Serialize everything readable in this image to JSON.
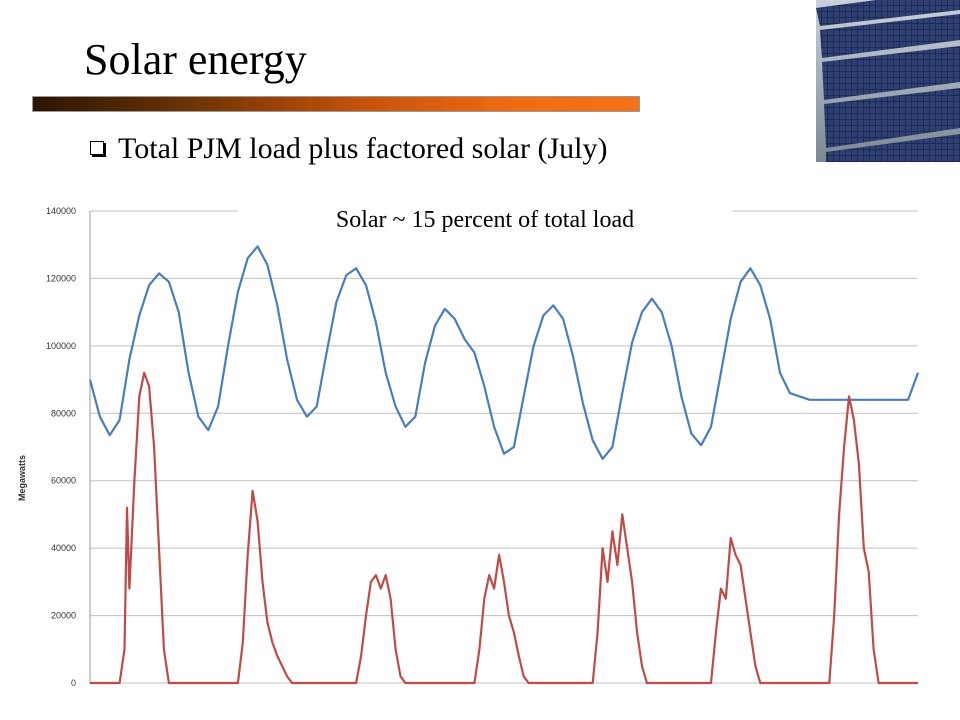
{
  "slide": {
    "title": "Solar energy",
    "bullet": "Total PJM load plus factored solar (July)",
    "annotation": "Solar ~ 15 percent of total load"
  },
  "photo_icon": "solar-panel-photo",
  "colors": {
    "load": "#4a7ebb",
    "solar": "#be4b48",
    "grid": "#c0c0c0",
    "title_bar_start": "#2a1500",
    "title_bar_end": "#f47217"
  },
  "chart_data": {
    "type": "line",
    "title": "",
    "xlabel": "",
    "ylabel": "Megawatts",
    "ylim": [
      0,
      140000
    ],
    "y_ticks": [
      "0",
      "20000",
      "40000",
      "60000",
      "80000",
      "100000",
      "120000",
      "140000"
    ],
    "grid": true,
    "legend": "none",
    "days": 7,
    "series": [
      {
        "key": "load",
        "color": "#4a7ebb",
        "x_hours": [
          0,
          2,
          4,
          6,
          8,
          10,
          12,
          14,
          16,
          18,
          20,
          22,
          24,
          26,
          28,
          30,
          32,
          34,
          36,
          38,
          40,
          42,
          44,
          46,
          48,
          50,
          52,
          54,
          56,
          58,
          60,
          62,
          64,
          66,
          68,
          70,
          72,
          74,
          76,
          78,
          80,
          82,
          84,
          86,
          88,
          90,
          92,
          94,
          96,
          98,
          100,
          102,
          104,
          106,
          108,
          110,
          112,
          114,
          116,
          118,
          120,
          122,
          124,
          126,
          128,
          130,
          132,
          134,
          136,
          138,
          140,
          142,
          144,
          146,
          148,
          150,
          152,
          154,
          156,
          158,
          160,
          162,
          164,
          166,
          168
        ],
        "values": [
          90000,
          79000,
          73500,
          78000,
          96000,
          109000,
          118000,
          121500,
          119000,
          110000,
          92000,
          79000,
          75000,
          82000,
          100000,
          116000,
          126000,
          129500,
          124000,
          112000,
          96000,
          84000,
          79000,
          82000,
          98000,
          113000,
          121000,
          123000,
          118000,
          107000,
          92000,
          82000,
          76000,
          79000,
          95000,
          106000,
          111000,
          108000,
          102000,
          98000,
          88000,
          76000,
          68000,
          70000,
          85000,
          100000,
          109000,
          112000,
          108000,
          97000,
          83000,
          72000,
          66500,
          70000,
          86000,
          101000,
          110000,
          114000,
          110000,
          100000,
          85000,
          74000,
          70500,
          76000,
          92000,
          108000,
          119000,
          123000,
          118000,
          108000,
          92000,
          86000,
          85000,
          84000,
          84000,
          84000,
          84000,
          84000,
          84000,
          84000,
          84000,
          84000,
          84000,
          84000,
          92000
        ]
      },
      {
        "key": "solar",
        "color": "#be4b48",
        "x_hours": [
          0,
          6,
          7,
          7.5,
          8,
          9,
          10,
          11,
          12,
          13,
          14,
          15,
          16,
          17,
          18,
          19,
          20,
          24,
          30,
          31,
          32,
          33,
          34,
          35,
          36,
          37,
          38,
          39,
          40,
          41,
          42,
          43,
          44,
          48,
          54,
          55,
          56,
          57,
          58,
          59,
          60,
          61,
          62,
          63,
          64,
          65,
          66,
          72,
          78,
          79,
          80,
          81,
          82,
          83,
          84,
          85,
          86,
          87,
          88,
          89,
          90,
          96,
          102,
          103,
          104,
          105,
          106,
          107,
          108,
          109,
          110,
          111,
          112,
          113,
          114,
          120,
          126,
          127,
          128,
          129,
          130,
          131,
          132,
          133,
          134,
          135,
          136,
          137,
          138,
          144,
          150,
          151,
          152,
          153,
          154,
          155,
          156,
          157,
          158,
          159,
          160,
          161,
          162,
          168
        ],
        "values": [
          0,
          0,
          10000,
          52000,
          28000,
          60000,
          85000,
          92000,
          88000,
          70000,
          40000,
          10000,
          0,
          0,
          0,
          0,
          0,
          0,
          0,
          12000,
          38000,
          57000,
          48000,
          30000,
          18000,
          12000,
          8000,
          5000,
          2000,
          0,
          0,
          0,
          0,
          0,
          0,
          8000,
          20000,
          30000,
          32000,
          28000,
          32000,
          25000,
          10000,
          2000,
          0,
          0,
          0,
          0,
          0,
          10000,
          25000,
          32000,
          28000,
          38000,
          30000,
          20000,
          15000,
          8000,
          2000,
          0,
          0,
          0,
          0,
          15000,
          40000,
          30000,
          45000,
          35000,
          50000,
          40000,
          30000,
          15000,
          5000,
          0,
          0,
          0,
          0,
          15000,
          28000,
          25000,
          43000,
          38000,
          35000,
          25000,
          15000,
          5000,
          0,
          0,
          0,
          0,
          0,
          20000,
          50000,
          70000,
          85000,
          78000,
          65000,
          40000,
          33000,
          10000,
          0,
          0,
          0,
          0
        ]
      }
    ]
  }
}
